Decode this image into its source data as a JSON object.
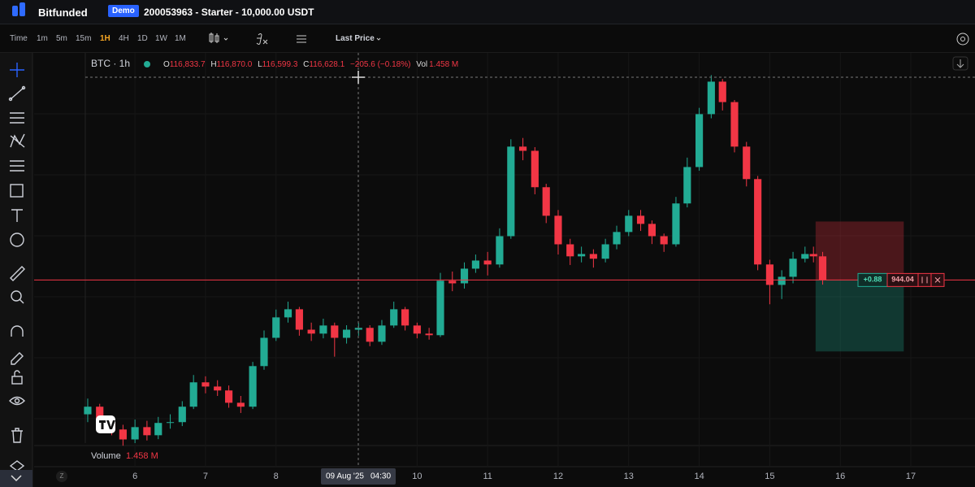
{
  "app": {
    "brand": "Bitfunded",
    "badge": "Demo",
    "account": "200053963 - Starter - 10,000.00 USDT",
    "intervals": [
      "Time",
      "1m",
      "5m",
      "15m",
      "1H",
      "4H",
      "1D",
      "1W",
      "1M"
    ],
    "price_mode": "Last Price"
  },
  "legend": {
    "o_key": "O",
    "o": "116,833.7",
    "h_key": "H",
    "h": "116,870.0",
    "l_key": "L",
    "l": "116,599.3",
    "c_key": "C",
    "c": "116,628.1",
    "change": "−205.6 (−0.18%)",
    "vol_key": "Vol",
    "vol": "1.458 M"
  },
  "volume_pane": {
    "label": "Volume",
    "value": "1.458 M"
  },
  "crosshair": {
    "date": "09 Aug '25",
    "time": "04:30"
  },
  "axis_corner": "Z",
  "chart_data": {
    "type": "candlestick",
    "title": "BTC · 1h",
    "x": [
      5.33,
      5.5,
      5.67,
      5.83,
      6,
      6.17,
      6.33,
      6.5,
      6.67,
      6.83,
      7,
      7.17,
      7.33,
      7.5,
      7.67,
      7.83,
      8,
      8.17,
      8.33,
      8.5,
      8.67,
      8.83,
      9,
      9.17,
      9.33,
      9.5,
      9.67,
      9.83,
      10,
      10.17,
      10.33,
      10.5,
      10.67,
      10.83,
      11,
      11.17,
      11.33,
      11.5,
      11.67,
      11.83,
      12,
      12.17,
      12.33,
      12.5,
      12.67,
      12.83,
      13,
      13.17,
      13.33,
      13.5,
      13.67,
      13.83,
      14,
      14.17,
      14.33,
      14.5,
      14.67,
      14.83,
      15,
      15.17,
      15.33,
      15.5,
      15.62,
      15.75
    ],
    "open": [
      111500,
      111790,
      111170,
      110920,
      110540,
      111010,
      110700,
      111170,
      111200,
      111790,
      112720,
      112560,
      112410,
      111940,
      111790,
      113340,
      114420,
      115200,
      115510,
      114730,
      114580,
      114890,
      114420,
      114730,
      114800,
      114270,
      114890,
      115510,
      114890,
      114580,
      114520,
      116600,
      116500,
      117060,
      117370,
      117220,
      118300,
      121720,
      121560,
      120170,
      119080,
      117990,
      117530,
      117620,
      117440,
      117990,
      118460,
      119080,
      118770,
      118300,
      117990,
      119550,
      120940,
      122960,
      124200,
      123420,
      121720,
      120480,
      117220,
      116440,
      116750,
      117440,
      117620,
      117530
    ],
    "high": [
      112100,
      111900,
      111400,
      111100,
      111300,
      111250,
      111400,
      111500,
      112000,
      113000,
      112950,
      112800,
      112600,
      112200,
      113500,
      114700,
      115500,
      115800,
      115600,
      115000,
      115150,
      115000,
      114900,
      115000,
      114900,
      115100,
      115800,
      115600,
      115000,
      114800,
      116900,
      116950,
      117300,
      117600,
      117700,
      118600,
      122000,
      122050,
      121700,
      120300,
      119300,
      118200,
      117900,
      117800,
      118200,
      118700,
      119300,
      119300,
      118900,
      118400,
      119800,
      121300,
      123200,
      124450,
      124300,
      123500,
      121900,
      120600,
      117400,
      117000,
      117700,
      117900,
      117900,
      117700
    ],
    "low": [
      111200,
      110900,
      110700,
      110300,
      110400,
      110500,
      110550,
      110950,
      111050,
      111700,
      112300,
      112200,
      111750,
      111550,
      111700,
      113200,
      114300,
      115000,
      114500,
      114300,
      114400,
      113700,
      114200,
      114500,
      114100,
      114150,
      114800,
      114700,
      114400,
      114350,
      114450,
      116200,
      116300,
      116900,
      116800,
      117100,
      118200,
      121200,
      119900,
      118800,
      117600,
      117200,
      117300,
      117100,
      117300,
      117800,
      118300,
      118500,
      118000,
      117700,
      117900,
      119400,
      120800,
      122800,
      123100,
      121500,
      120200,
      117000,
      115700,
      115900,
      116500,
      117300,
      117300,
      116450
    ],
    "close": [
      111790,
      111170,
      110920,
      110540,
      111010,
      110700,
      111170,
      111200,
      111790,
      112720,
      112560,
      112410,
      111940,
      111790,
      113340,
      114420,
      115200,
      115510,
      114730,
      114580,
      114890,
      114420,
      114730,
      114800,
      114270,
      114890,
      115510,
      114890,
      114580,
      114520,
      116600,
      116500,
      117060,
      117370,
      117220,
      118300,
      121720,
      121560,
      120170,
      119080,
      117990,
      117530,
      117620,
      117440,
      117990,
      118460,
      119080,
      118770,
      118300,
      117990,
      119550,
      120940,
      122960,
      124200,
      123420,
      121720,
      120480,
      117220,
      116440,
      116750,
      117440,
      117620,
      117530,
      116630
    ],
    "up_color": "#22ab94",
    "down_color": "#f23645",
    "xlim": [
      4.57,
      17.91
    ],
    "ylim": [
      110400,
      125300
    ],
    "xticks": [
      6,
      7,
      8,
      10,
      11,
      12,
      13,
      14,
      15,
      16,
      17
    ],
    "price_line": 116628.1,
    "position": {
      "start": 15.65,
      "end": 16.9,
      "entry": 116628.1,
      "stop": 118860,
      "target": 113900,
      "pnl": "+0.88",
      "qty": "944.04"
    }
  }
}
